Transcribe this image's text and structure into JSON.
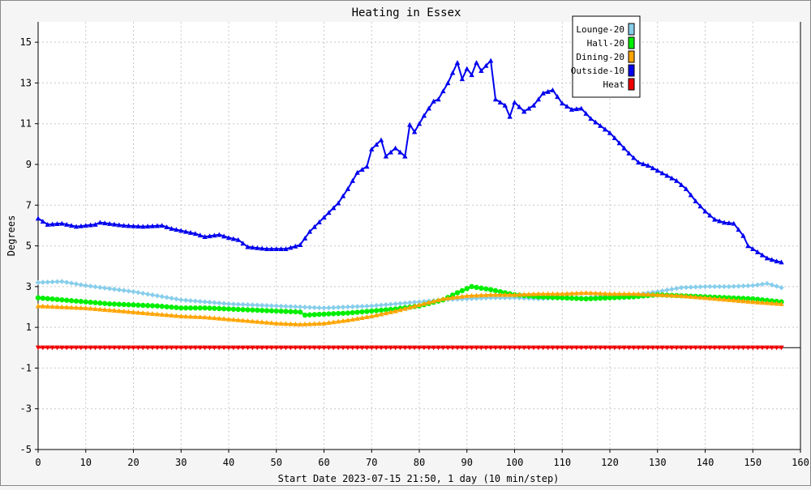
{
  "chart_data": {
    "type": "line",
    "title": "Heating in Essex",
    "xlabel": "Start Date 2023-07-15 21:50, 1 day (10 min/step)",
    "ylabel": "Degrees",
    "xlim": [
      0,
      160
    ],
    "ylim": [
      -5,
      16
    ],
    "x_ticks": [
      "0",
      "10",
      "20",
      "30",
      "40",
      "50",
      "60",
      "70",
      "80",
      "90",
      "100",
      "110",
      "120",
      "130",
      "140",
      "150",
      "160"
    ],
    "y_ticks": [
      "-5",
      "-3",
      "-1",
      "1",
      "3",
      "5",
      "7",
      "9",
      "11",
      "13",
      "15"
    ],
    "grid": true,
    "legend_position": "top-right",
    "series": [
      {
        "name": "Lounge-20",
        "color": "#87ceeb",
        "marker": "diamond",
        "points": [
          [
            0,
            3.2
          ],
          [
            5,
            3.25
          ],
          [
            10,
            3.05
          ],
          [
            15,
            2.9
          ],
          [
            20,
            2.75
          ],
          [
            25,
            2.55
          ],
          [
            30,
            2.35
          ],
          [
            35,
            2.25
          ],
          [
            40,
            2.15
          ],
          [
            45,
            2.1
          ],
          [
            50,
            2.05
          ],
          [
            55,
            2.0
          ],
          [
            60,
            1.95
          ],
          [
            65,
            2.0
          ],
          [
            70,
            2.05
          ],
          [
            75,
            2.15
          ],
          [
            80,
            2.25
          ],
          [
            85,
            2.35
          ],
          [
            90,
            2.4
          ],
          [
            95,
            2.45
          ],
          [
            100,
            2.45
          ],
          [
            105,
            2.4
          ],
          [
            110,
            2.45
          ],
          [
            115,
            2.45
          ],
          [
            120,
            2.55
          ],
          [
            125,
            2.6
          ],
          [
            130,
            2.75
          ],
          [
            135,
            2.95
          ],
          [
            140,
            3.0
          ],
          [
            145,
            3.0
          ],
          [
            150,
            3.05
          ],
          [
            153,
            3.15
          ],
          [
            156,
            2.95
          ]
        ]
      },
      {
        "name": "Hall-20",
        "color": "#00ee00",
        "marker": "circle",
        "points": [
          [
            0,
            2.45
          ],
          [
            5,
            2.35
          ],
          [
            10,
            2.25
          ],
          [
            15,
            2.15
          ],
          [
            20,
            2.1
          ],
          [
            25,
            2.05
          ],
          [
            30,
            1.95
          ],
          [
            35,
            1.95
          ],
          [
            40,
            1.9
          ],
          [
            45,
            1.85
          ],
          [
            50,
            1.8
          ],
          [
            55,
            1.75
          ],
          [
            56,
            1.6
          ],
          [
            60,
            1.65
          ],
          [
            65,
            1.7
          ],
          [
            70,
            1.8
          ],
          [
            75,
            1.9
          ],
          [
            80,
            2.05
          ],
          [
            85,
            2.35
          ],
          [
            88,
            2.7
          ],
          [
            91,
            3.0
          ],
          [
            95,
            2.85
          ],
          [
            100,
            2.6
          ],
          [
            105,
            2.5
          ],
          [
            110,
            2.45
          ],
          [
            115,
            2.4
          ],
          [
            120,
            2.45
          ],
          [
            125,
            2.5
          ],
          [
            130,
            2.6
          ],
          [
            135,
            2.55
          ],
          [
            140,
            2.5
          ],
          [
            145,
            2.45
          ],
          [
            150,
            2.4
          ],
          [
            156,
            2.25
          ]
        ]
      },
      {
        "name": "Dining-20",
        "color": "#ffa500",
        "marker": "triangle",
        "points": [
          [
            0,
            2.05
          ],
          [
            5,
            2.0
          ],
          [
            10,
            1.95
          ],
          [
            15,
            1.85
          ],
          [
            20,
            1.75
          ],
          [
            25,
            1.65
          ],
          [
            30,
            1.55
          ],
          [
            35,
            1.5
          ],
          [
            40,
            1.4
          ],
          [
            45,
            1.3
          ],
          [
            50,
            1.2
          ],
          [
            55,
            1.15
          ],
          [
            60,
            1.2
          ],
          [
            65,
            1.35
          ],
          [
            70,
            1.55
          ],
          [
            75,
            1.8
          ],
          [
            80,
            2.1
          ],
          [
            85,
            2.4
          ],
          [
            90,
            2.55
          ],
          [
            95,
            2.6
          ],
          [
            100,
            2.6
          ],
          [
            105,
            2.65
          ],
          [
            110,
            2.65
          ],
          [
            115,
            2.7
          ],
          [
            120,
            2.65
          ],
          [
            125,
            2.65
          ],
          [
            130,
            2.6
          ],
          [
            135,
            2.55
          ],
          [
            140,
            2.45
          ],
          [
            145,
            2.35
          ],
          [
            150,
            2.25
          ],
          [
            156,
            2.15
          ]
        ]
      },
      {
        "name": "Outside-10",
        "color": "#0000ee",
        "marker": "triangle",
        "points": [
          [
            0,
            6.35
          ],
          [
            2,
            6.05
          ],
          [
            5,
            6.1
          ],
          [
            8,
            5.95
          ],
          [
            12,
            6.05
          ],
          [
            13,
            6.15
          ],
          [
            18,
            6.0
          ],
          [
            22,
            5.95
          ],
          [
            26,
            6.0
          ],
          [
            28,
            5.85
          ],
          [
            30,
            5.75
          ],
          [
            33,
            5.6
          ],
          [
            35,
            5.45
          ],
          [
            38,
            5.55
          ],
          [
            40,
            5.4
          ],
          [
            42,
            5.3
          ],
          [
            44,
            4.95
          ],
          [
            48,
            4.85
          ],
          [
            52,
            4.85
          ],
          [
            55,
            5.05
          ],
          [
            57,
            5.7
          ],
          [
            60,
            6.4
          ],
          [
            63,
            7.1
          ],
          [
            65,
            7.8
          ],
          [
            67,
            8.6
          ],
          [
            69,
            8.9
          ],
          [
            70,
            9.75
          ],
          [
            72,
            10.2
          ],
          [
            73,
            9.4
          ],
          [
            75,
            9.8
          ],
          [
            77,
            9.4
          ],
          [
            78,
            10.95
          ],
          [
            79,
            10.6
          ],
          [
            81,
            11.4
          ],
          [
            83,
            12.1
          ],
          [
            84,
            12.2
          ],
          [
            86,
            13.0
          ],
          [
            87,
            13.5
          ],
          [
            88,
            14.0
          ],
          [
            89,
            13.2
          ],
          [
            90,
            13.7
          ],
          [
            91,
            13.4
          ],
          [
            92,
            14.0
          ],
          [
            93,
            13.6
          ],
          [
            95,
            14.1
          ],
          [
            96,
            12.2
          ],
          [
            98,
            11.9
          ],
          [
            99,
            11.35
          ],
          [
            100,
            12.05
          ],
          [
            102,
            11.6
          ],
          [
            104,
            11.9
          ],
          [
            106,
            12.5
          ],
          [
            108,
            12.65
          ],
          [
            110,
            12.0
          ],
          [
            112,
            11.7
          ],
          [
            114,
            11.75
          ],
          [
            116,
            11.25
          ],
          [
            118,
            10.9
          ],
          [
            120,
            10.55
          ],
          [
            122,
            10.05
          ],
          [
            124,
            9.55
          ],
          [
            126,
            9.1
          ],
          [
            128,
            8.95
          ],
          [
            130,
            8.7
          ],
          [
            132,
            8.45
          ],
          [
            134,
            8.2
          ],
          [
            136,
            7.8
          ],
          [
            138,
            7.2
          ],
          [
            140,
            6.7
          ],
          [
            142,
            6.3
          ],
          [
            144,
            6.15
          ],
          [
            146,
            6.1
          ],
          [
            148,
            5.5
          ],
          [
            149,
            5.0
          ],
          [
            151,
            4.7
          ],
          [
            153,
            4.4
          ],
          [
            155,
            4.25
          ],
          [
            156,
            4.2
          ]
        ]
      },
      {
        "name": "Heat",
        "color": "#ee0000",
        "marker": "triangle-down",
        "points": [
          [
            0,
            0.0
          ],
          [
            156,
            0.0
          ]
        ]
      }
    ]
  }
}
